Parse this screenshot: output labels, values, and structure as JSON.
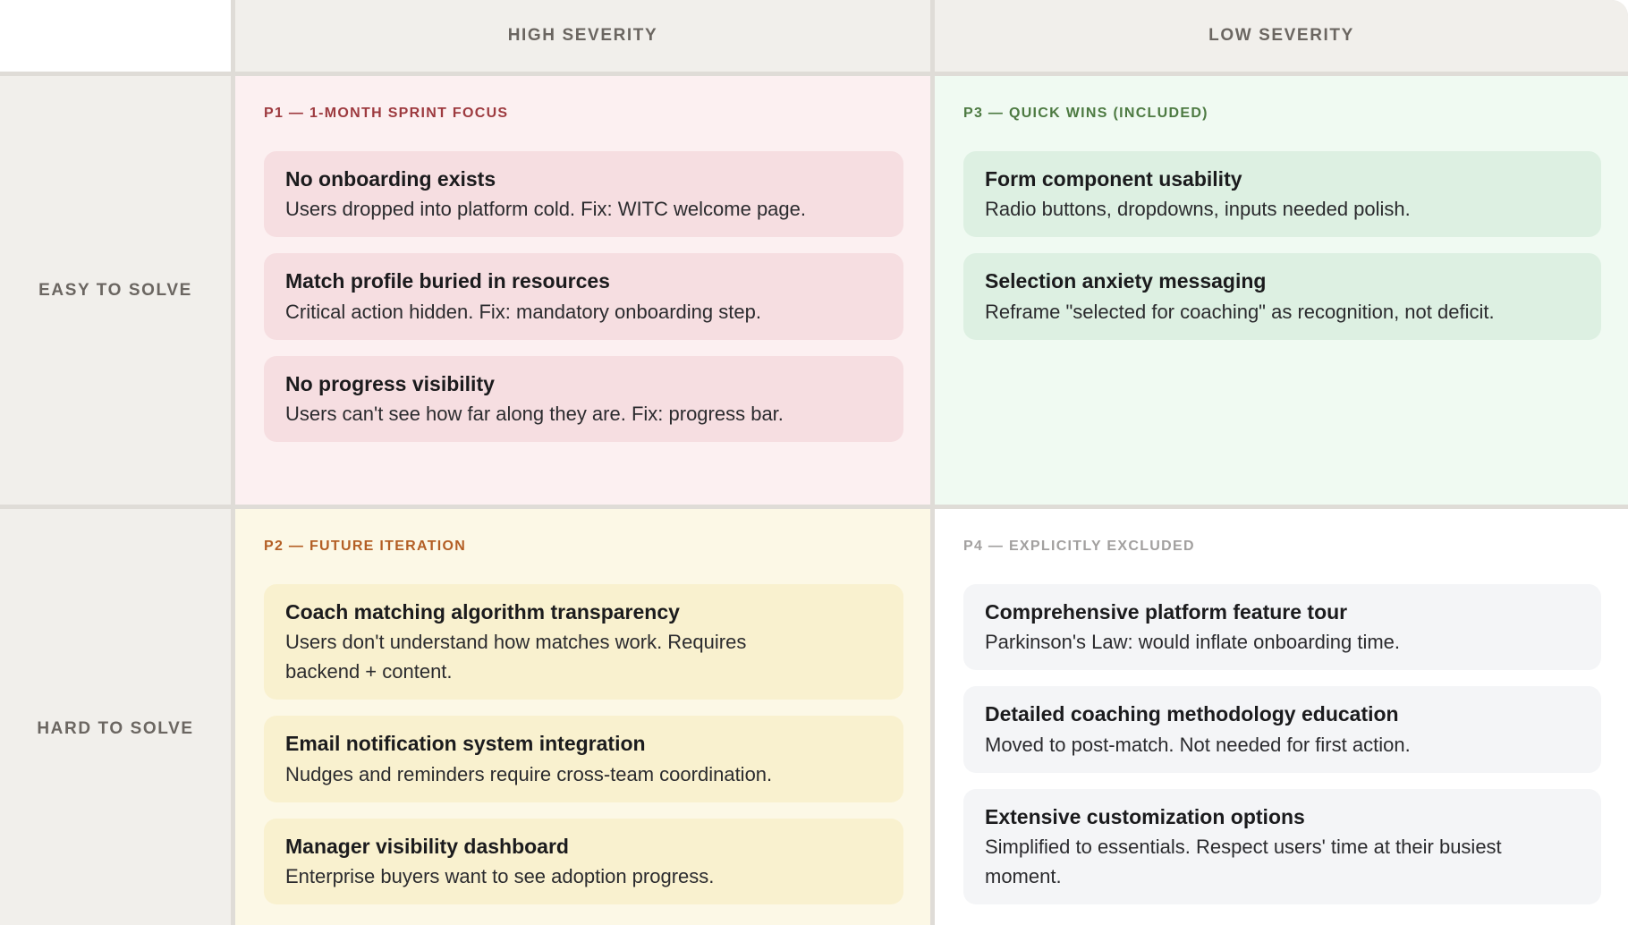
{
  "matrix": {
    "column_headers": [
      "HIGH SEVERITY",
      "LOW SEVERITY"
    ],
    "row_headers": [
      "EASY TO SOLVE",
      "HARD TO SOLVE"
    ],
    "divider_color": "#dfdcd7",
    "header_background": "#f1efeb",
    "header_text_color": "#6b6661",
    "quadrants": [
      {
        "id": "P1",
        "position": "easy-to-solve / high-severity",
        "label": "P1 — 1-MONTH SPRINT FOCUS",
        "accent_color": "#9d3a3f",
        "background_color": "#fcf0f1",
        "card_color": "#f6dee1",
        "cards": [
          {
            "title": "No onboarding exists",
            "description": "Users dropped into platform cold. Fix: WITC welcome page."
          },
          {
            "title": "Match profile buried in resources",
            "description": "Critical action hidden. Fix: mandatory onboarding step."
          },
          {
            "title": "No progress visibility",
            "description": "Users can't see how far along they are. Fix: progress bar."
          }
        ]
      },
      {
        "id": "P3",
        "position": "easy-to-solve / low-severity",
        "label": "P3 — QUICK WINS (INCLUDED)",
        "accent_color": "#4d7a42",
        "background_color": "#f0faf2",
        "card_color": "#ddf0e2",
        "cards": [
          {
            "title": "Form component usability",
            "description": "Radio buttons, dropdowns, inputs needed polish."
          },
          {
            "title": "Selection anxiety messaging",
            "description": "Reframe \"selected for coaching\" as recognition, not deficit."
          }
        ]
      },
      {
        "id": "P2",
        "position": "hard-to-solve / high-severity",
        "label": "P2 — FUTURE ITERATION",
        "accent_color": "#b35e24",
        "background_color": "#fcf8e6",
        "card_color": "#f9f1cf",
        "cards": [
          {
            "title": "Coach matching algorithm transparency",
            "description": "Users don't understand how matches work. Requires\nbackend + content."
          },
          {
            "title": "Email notification system integration",
            "description": "Nudges and reminders require cross-team coordination."
          },
          {
            "title": "Manager visibility dashboard",
            "description": "Enterprise buyers want to see adoption progress."
          }
        ]
      },
      {
        "id": "P4",
        "position": "hard-to-solve / low-severity",
        "label": "P4 — EXPLICITLY EXCLUDED",
        "accent_color": "#a2a09f",
        "background_color": "#ffffff",
        "card_color": "#f4f5f7",
        "cards": [
          {
            "title": "Comprehensive platform feature tour",
            "description": "Parkinson's Law: would inflate onboarding time."
          },
          {
            "title": "Detailed coaching methodology education",
            "description": "Moved to post-match. Not needed for first action."
          },
          {
            "title": "Extensive customization options",
            "description": "Simplified to essentials. Respect users' time at their busiest\nmoment."
          }
        ]
      }
    ]
  }
}
